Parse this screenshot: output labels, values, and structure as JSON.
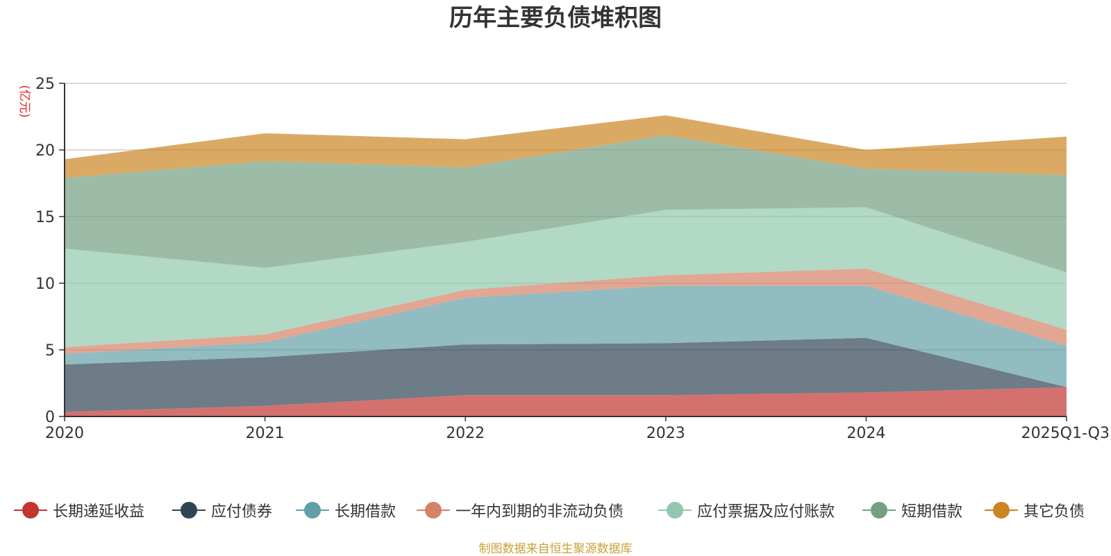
{
  "title": "历年主要负债堆积图",
  "footer": "制图数据来自恒生聚源数据库",
  "chart_data": {
    "type": "area",
    "stacked": true,
    "title": "历年主要负债堆积图",
    "ylabel": "亿元",
    "ylim": [
      0,
      25
    ],
    "yticks": [
      "0",
      "5",
      "10",
      "15",
      "20",
      "25"
    ],
    "categories": [
      "2020",
      "2021",
      "2022",
      "2023",
      "2024",
      "2025Q1-Q3"
    ],
    "series": [
      {
        "name": "长期递延收益",
        "color": "#c23531",
        "values": [
          0.35,
          0.8,
          1.6,
          1.6,
          1.8,
          2.2
        ]
      },
      {
        "name": "应付债券",
        "color": "#2f4554",
        "values": [
          3.55,
          3.65,
          3.8,
          3.9,
          4.1,
          0.0
        ]
      },
      {
        "name": "长期借款",
        "color": "#61a0a8",
        "values": [
          0.8,
          1.1,
          3.5,
          4.3,
          3.9,
          3.1
        ]
      },
      {
        "name": "一年内到期的非流动负债",
        "color": "#d48265",
        "values": [
          0.5,
          0.6,
          0.6,
          0.8,
          1.3,
          1.2
        ]
      },
      {
        "name": "应付票据及应付账款",
        "color": "#91c7ae",
        "values": [
          7.4,
          5.0,
          3.6,
          4.9,
          4.6,
          4.3
        ]
      },
      {
        "name": "短期借款",
        "color": "#749f83",
        "values": [
          5.3,
          8.0,
          5.6,
          5.6,
          2.9,
          7.3
        ]
      },
      {
        "name": "其它负债",
        "color": "#ca8622",
        "values": [
          1.4,
          2.1,
          2.1,
          1.5,
          1.4,
          2.9
        ]
      }
    ]
  }
}
